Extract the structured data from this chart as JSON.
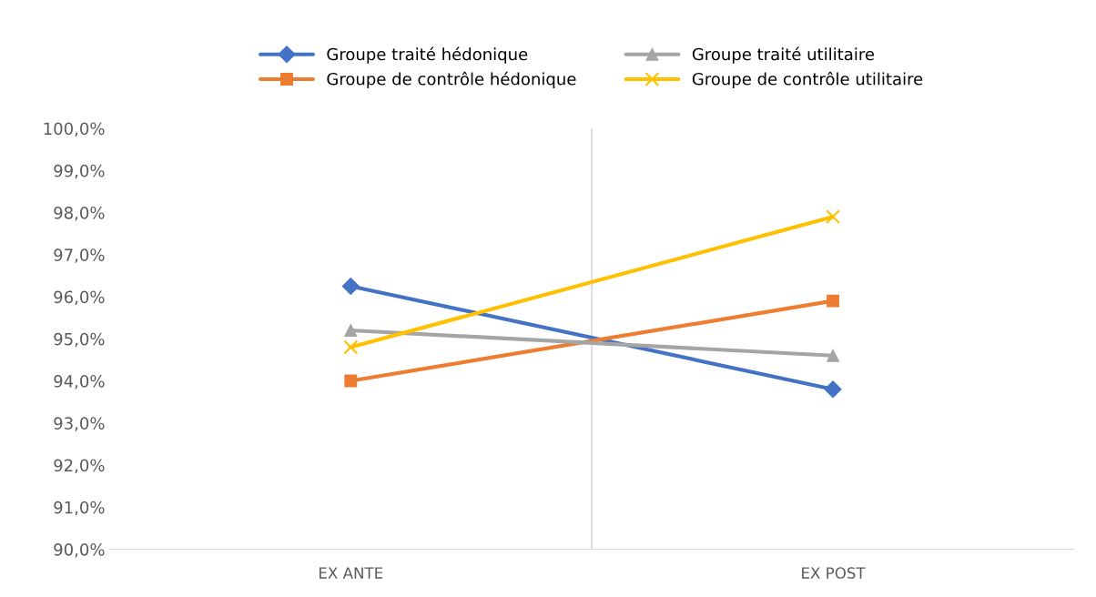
{
  "chart_data": {
    "type": "line",
    "categories": [
      "EX ANTE",
      "EX POST"
    ],
    "series": [
      {
        "name": "Groupe traité hédonique",
        "color": "#4472c4",
        "marker": "diamond",
        "values": [
          96.25,
          93.8
        ]
      },
      {
        "name": "Groupe de contrôle hédonique",
        "color": "#ed7d31",
        "marker": "square",
        "values": [
          94.0,
          95.9
        ]
      },
      {
        "name": "Groupe traité utilitaire",
        "color": "#a5a5a5",
        "marker": "triangle",
        "values": [
          95.2,
          94.6
        ]
      },
      {
        "name": "Groupe de contrôle utilitaire",
        "color": "#ffc000",
        "marker": "cross",
        "values": [
          94.8,
          97.9
        ]
      }
    ],
    "ylim": [
      90,
      100
    ],
    "yticks": [
      {
        "value": 90,
        "label": "90,0%"
      },
      {
        "value": 91,
        "label": "91,0%"
      },
      {
        "value": 92,
        "label": "92,0%"
      },
      {
        "value": 93,
        "label": "93,0%"
      },
      {
        "value": 94,
        "label": "94,0%"
      },
      {
        "value": 95,
        "label": "95,0%"
      },
      {
        "value": 96,
        "label": "96,0%"
      },
      {
        "value": 97,
        "label": "97,0%"
      },
      {
        "value": 98,
        "label": "98,0%"
      },
      {
        "value": 99,
        "label": "99,0%"
      },
      {
        "value": 100,
        "label": "100,0%"
      }
    ],
    "grid": "x",
    "legend": "top",
    "line_style": "solid"
  }
}
